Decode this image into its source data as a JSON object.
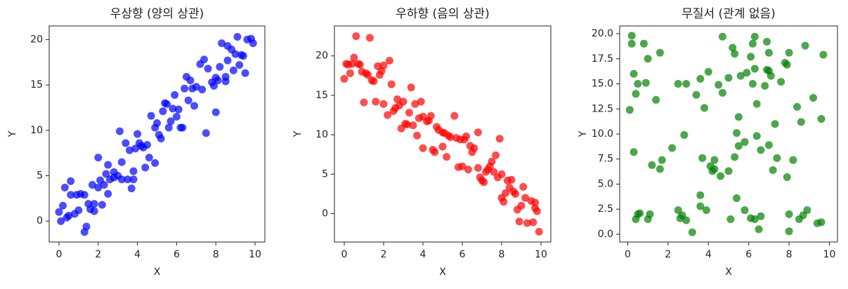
{
  "chart_data": [
    {
      "type": "scatter",
      "title": "우상향 (양의 상관)",
      "x_label": "X",
      "y_label": "Y",
      "color": "#0000ff",
      "opacity": 0.7,
      "xlim": [
        -0.5,
        10.5
      ],
      "ylim": [
        -2.3,
        21.5
      ],
      "xticks": [
        0,
        2,
        4,
        6,
        8,
        10
      ],
      "yticks": [
        0,
        5,
        10,
        15,
        20
      ],
      "x": [
        0,
        0.1,
        0.2,
        0.3,
        0.4,
        0.6,
        0.5,
        0.6,
        0.8,
        0.9,
        1,
        1.1,
        1.3,
        1.3,
        1.4,
        1.5,
        1.6,
        1.7,
        1.8,
        1.8,
        2,
        2,
        2.1,
        2.2,
        2.3,
        2.4,
        2.5,
        2.5,
        2.6,
        2.8,
        2.8,
        3,
        3.1,
        3.2,
        3.2,
        3.4,
        3.5,
        3.6,
        3.7,
        3.8,
        3.8,
        3.9,
        4,
        4.1,
        4.2,
        4.3,
        4.4,
        4.5,
        4.6,
        4.7,
        4.9,
        4.9,
        5,
        5.1,
        5.2,
        5.3,
        5.4,
        5.5,
        5.6,
        5.7,
        5.8,
        5.9,
        6,
        6.1,
        6.2,
        6.3,
        6.4,
        6.5,
        6.6,
        6.7,
        6.8,
        6.9,
        7,
        7.2,
        7.3,
        7.4,
        7.5,
        7.6,
        7.8,
        7.9,
        8,
        8,
        8.1,
        8.2,
        8.3,
        8.5,
        8.5,
        8.6,
        8.6,
        8.8,
        8.9,
        9,
        9.1,
        9.2,
        9.3,
        9.4,
        9.5,
        9.6,
        9.8,
        9.9
      ],
      "values": [
        1,
        0,
        1.7,
        3.7,
        0.4,
        4.4,
        0.6,
        2.9,
        0.8,
        2.9,
        1.2,
        3,
        2.9,
        -1.2,
        -0.6,
        1.9,
        1.3,
        4,
        1.1,
        1.9,
        7,
        3.7,
        4.5,
        1.8,
        4,
        5.2,
        3,
        6.2,
        4.6,
        5.4,
        4.8,
        5,
        9.9,
        6.5,
        4.6,
        8.6,
        4.6,
        7.8,
        3.6,
        4.6,
        5.5,
        8,
        9.6,
        8.6,
        8.3,
        8.1,
        5.9,
        8.4,
        7,
        11.6,
        6.4,
        10.3,
        10.8,
        9.5,
        9.1,
        12.1,
        13,
        12.9,
        10.3,
        11,
        12.4,
        13.9,
        11.5,
        12.3,
        10.3,
        10.3,
        14.6,
        15.9,
        13.3,
        15.5,
        14.6,
        12.7,
        14.8,
        17.3,
        14.5,
        17.8,
        9.7,
        16.8,
        15.3,
        14.9,
        15.8,
        12,
        15.5,
        17,
        19.6,
        15.9,
        15.4,
        17.7,
        19.3,
        18.9,
        16.6,
        18.4,
        20.3,
        17.2,
        18.3,
        18.2,
        16.3,
        20,
        20.1,
        19.6
      ]
    },
    {
      "type": "scatter",
      "title": "우하향 (음의 상관)",
      "x_label": "X",
      "y_label": "Y",
      "color": "#ff0000",
      "opacity": 0.7,
      "xlim": [
        -0.5,
        10.5
      ],
      "ylim": [
        -3.6,
        23.8
      ],
      "xticks": [
        0,
        2,
        4,
        6,
        8,
        10
      ],
      "yticks": [
        0,
        5,
        10,
        15,
        20
      ],
      "x": [
        0,
        0.1,
        0.2,
        0.3,
        0.4,
        0.5,
        0.6,
        0.7,
        0.8,
        0.9,
        1,
        1.1,
        1.2,
        1.3,
        1.4,
        1.5,
        1.6,
        1.7,
        1.8,
        1.9,
        2,
        2,
        2.2,
        2.3,
        2.4,
        2.5,
        2.6,
        2.7,
        2.8,
        2.9,
        3,
        3.1,
        3.2,
        3.3,
        3.4,
        3.5,
        3.6,
        3.7,
        3.8,
        3.9,
        4,
        4,
        4.2,
        4.3,
        4.4,
        4.5,
        4.6,
        4.7,
        4.8,
        5,
        5,
        5.1,
        5.2,
        5.3,
        5.4,
        5.6,
        5.7,
        5.8,
        5.9,
        6,
        6.1,
        6.2,
        6.3,
        6.4,
        6.5,
        6.6,
        6.8,
        6.8,
        6.9,
        7,
        7.1,
        7.2,
        7.3,
        7.4,
        7.5,
        7.6,
        7.7,
        7.8,
        7.9,
        8,
        8,
        8.1,
        8.2,
        8.3,
        8.4,
        8.5,
        8.6,
        8.7,
        8.8,
        8.9,
        9,
        9.1,
        9.2,
        9.3,
        9.5,
        9.6,
        9.7,
        9.8,
        9.9,
        9.7
      ],
      "values": [
        17.1,
        19,
        18.9,
        17.8,
        19,
        19.8,
        22.5,
        19,
        18.9,
        18,
        14.1,
        17.8,
        17.6,
        22.3,
        16.9,
        16.8,
        14.2,
        18.7,
        17.6,
        18.1,
        13.9,
        18.8,
        12.5,
        19.4,
        16.4,
        13,
        13.4,
        14.5,
        13.7,
        10.8,
        14.2,
        11.4,
        11.3,
        12.8,
        16,
        11.2,
        13.9,
        9.9,
        12.1,
        14.2,
        12.3,
        8.3,
        11.7,
        11.8,
        12.4,
        8.1,
        7.8,
        11,
        10.6,
        10.3,
        8.5,
        10.2,
        7.2,
        9.9,
        9.7,
        12.4,
        9.6,
        5.9,
        9.4,
        6,
        9.4,
        9.8,
        5.6,
        8.6,
        7.8,
        8.3,
        10.3,
        5.8,
        4.6,
        4.2,
        4,
        5.3,
        5.6,
        6,
        6.6,
        5.3,
        7.4,
        4.6,
        9.5,
        5,
        2,
        1.5,
        2.6,
        4.2,
        3.3,
        4.3,
        2.8,
        2.5,
        0.5,
        -1,
        1,
        3.4,
        2,
        -1.2,
        1.6,
        -1.1,
        0.7,
        0.3,
        -2.3,
        1.4
      ]
    },
    {
      "type": "scatter",
      "title": "무질서 (관계 없음)",
      "x_label": "X",
      "y_label": "Y",
      "color": "#008000",
      "opacity": 0.7,
      "xlim": [
        -0.4,
        10.4
      ],
      "ylim": [
        -0.77,
        20.77
      ],
      "xticks": [
        0,
        2,
        4,
        6,
        8,
        10
      ],
      "yticks": [
        {
          "value": 0,
          "label": "0.0"
        },
        2.5,
        {
          "value": 5,
          "label": "5.0"
        },
        7.5,
        {
          "value": 10,
          "label": "10.0"
        },
        12.5,
        {
          "value": 15,
          "label": "15.0"
        },
        17.5,
        {
          "value": 20,
          "label": "20.0"
        }
      ],
      "x": [
        0.1,
        0.2,
        0.2,
        0.3,
        0.3,
        0.4,
        0.4,
        0.5,
        0.6,
        0.5,
        0.8,
        0.9,
        1,
        1,
        1.1,
        1.2,
        1.4,
        1.6,
        1.6,
        1.7,
        2.2,
        2.5,
        2.5,
        2.7,
        2.8,
        2.9,
        2.9,
        3.2,
        3.4,
        3.6,
        3.6,
        3.6,
        3.7,
        3.8,
        3.9,
        4,
        4.1,
        4.2,
        4.3,
        4.5,
        4.6,
        4.7,
        4.7,
        5,
        5,
        5.1,
        5.2,
        5.3,
        5.3,
        5.4,
        5.4,
        5.5,
        5.5,
        5.6,
        5.8,
        5.8,
        5.9,
        6.1,
        6.1,
        6.2,
        6.2,
        6.3,
        6.3,
        6.3,
        6.4,
        6.4,
        6.5,
        6.6,
        6.6,
        6.8,
        6.9,
        6.9,
        7,
        7,
        7,
        7.1,
        7.2,
        7.3,
        7.4,
        7.6,
        7.8,
        7.9,
        7.9,
        8,
        8,
        8,
        8.2,
        8.4,
        8.5,
        8.6,
        8.7,
        8.8,
        8.9,
        9.2,
        9.4,
        9.6,
        9.6,
        9.7,
        4.3,
        2.6
      ],
      "values": [
        12.4,
        19,
        19.8,
        16,
        8.2,
        14,
        1.5,
        2,
        2.1,
        15,
        19,
        15.1,
        17.5,
        1.5,
        2,
        6.9,
        13.4,
        18.1,
        6.5,
        7.4,
        8.6,
        2.4,
        15,
        1.9,
        9.9,
        15,
        1.4,
        0.2,
        13.9,
        3.9,
        2.8,
        15.5,
        7.6,
        12.6,
        2.4,
        16.2,
        6.8,
        6.3,
        7.4,
        14.9,
        5.8,
        14.1,
        19.7,
        6.3,
        15.6,
        1.5,
        18.6,
        7.7,
        18,
        3.6,
        10.1,
        11.7,
        8.8,
        15.8,
        2.4,
        9.2,
        16.1,
        1.6,
        17.7,
        19,
        15,
        19.7,
        16.5,
        1.5,
        13,
        9.8,
        0.5,
        8.4,
        1.8,
        14.8,
        16.4,
        19.2,
        16.3,
        18.1,
        8.9,
        15.8,
        6.4,
        11,
        7.6,
        15.2,
        17.1,
        5.7,
        16.9,
        18.1,
        2,
        0.3,
        7.4,
        12.7,
        1.5,
        11.2,
        1.9,
        18.8,
        2.4,
        13.6,
        1.1,
        1.2,
        11.5,
        17.9,
        6.5,
        1.6
      ]
    }
  ]
}
